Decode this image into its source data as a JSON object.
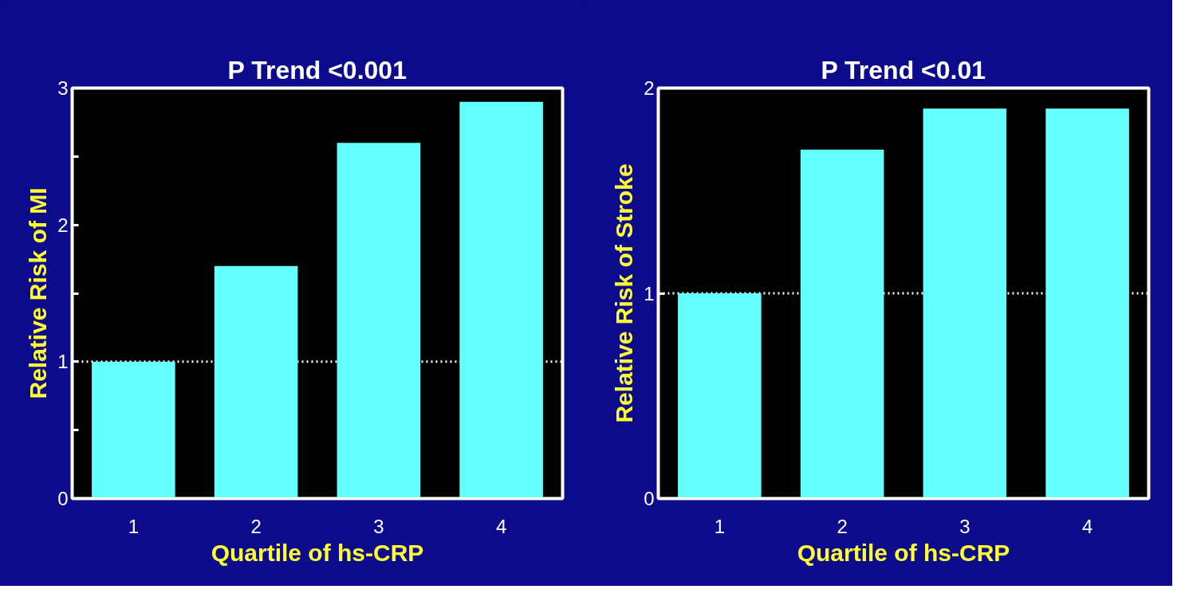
{
  "chart_data": [
    {
      "type": "bar",
      "title": "P Trend <0.001",
      "xlabel": "Quartile of hs-CRP",
      "ylabel": "Relative Risk of MI",
      "categories": [
        "1",
        "2",
        "3",
        "4"
      ],
      "values": [
        1.0,
        1.7,
        2.6,
        2.9
      ],
      "color": "#66ffff",
      "ylim": [
        0,
        3
      ],
      "yticks": [
        0,
        {
          "value": 0.5,
          "label": null
        },
        1,
        {
          "value": 1.5,
          "label": null
        },
        2,
        {
          "value": 2.5,
          "label": null
        },
        3
      ],
      "grid": false,
      "ref_lines": [
        {
          "axis": "y",
          "value": 1,
          "color": "#ffffff",
          "line_style": "dotted"
        }
      ]
    },
    {
      "type": "bar",
      "title": "P Trend <0.01",
      "xlabel": "Quartile of hs-CRP",
      "ylabel": "Relative Risk of Stroke",
      "categories": [
        "1",
        "2",
        "3",
        "4"
      ],
      "values": [
        1.0,
        1.7,
        1.9,
        1.9
      ],
      "color": "#66ffff",
      "ylim": [
        0,
        2
      ],
      "yticks": [
        0,
        1,
        2
      ],
      "grid": false,
      "ref_lines": [
        {
          "axis": "y",
          "value": 1,
          "color": "#ffffff",
          "line_style": "dotted"
        }
      ]
    }
  ]
}
